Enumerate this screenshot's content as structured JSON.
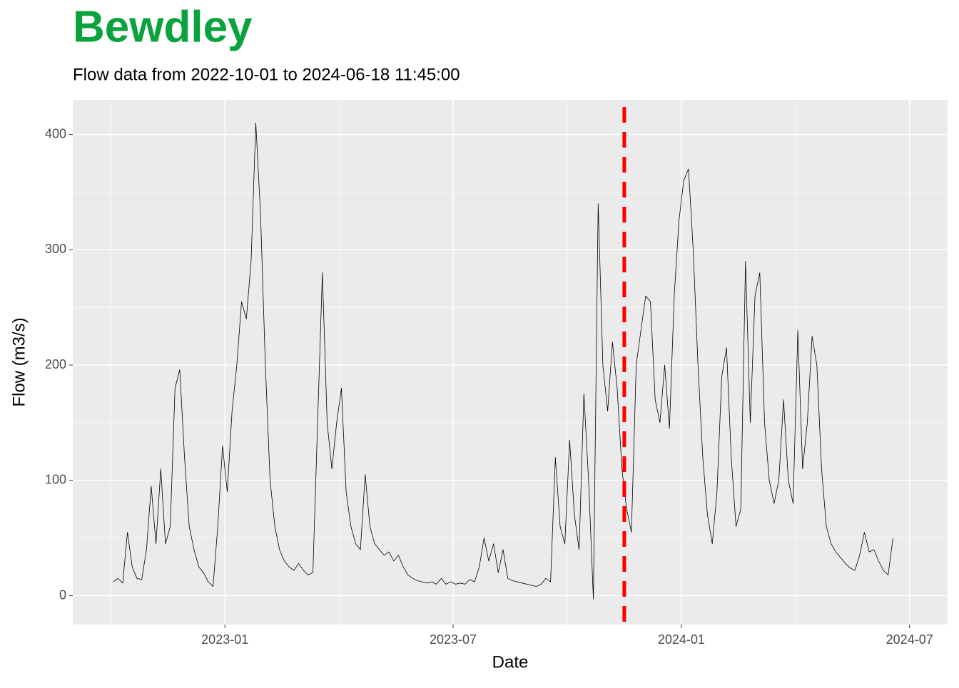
{
  "chart_data": {
    "type": "line",
    "title": "Bewdley",
    "subtitle": "Flow data from 2022-10-01 to 2024-06-18 11:45:00",
    "x_label": "Date",
    "y_label": "Flow (m3/s)",
    "title_color": "#0aa23d",
    "vline": {
      "x": "2023-11",
      "color": "#ff0000"
    },
    "xlim": [
      "2022-09",
      "2024-08"
    ],
    "xticks": [
      "2023-01",
      "2023-07",
      "2024-01",
      "2024-07"
    ],
    "ylim": [
      -25,
      430
    ],
    "yticks": [
      0,
      100,
      200,
      300,
      400
    ],
    "grid": true,
    "x": [
      "2022-10",
      "2022-10",
      "2022-10",
      "2022-10",
      "2022-10",
      "2022-10",
      "2022-10",
      "2022-10",
      "2022-11",
      "2022-11",
      "2022-11",
      "2022-11",
      "2022-11",
      "2022-11",
      "2022-11",
      "2022-11",
      "2022-12",
      "2022-12",
      "2022-12",
      "2022-12",
      "2022-12",
      "2022-12",
      "2022-12",
      "2022-12",
      "2023-01",
      "2023-01",
      "2023-01",
      "2023-01",
      "2023-01",
      "2023-01",
      "2023-01",
      "2023-01",
      "2023-02",
      "2023-02",
      "2023-02",
      "2023-02",
      "2023-02",
      "2023-02",
      "2023-02",
      "2023-02",
      "2023-03",
      "2023-03",
      "2023-03",
      "2023-03",
      "2023-03",
      "2023-03",
      "2023-03",
      "2023-03",
      "2023-04",
      "2023-04",
      "2023-04",
      "2023-04",
      "2023-04",
      "2023-04",
      "2023-04",
      "2023-04",
      "2023-05",
      "2023-05",
      "2023-05",
      "2023-05",
      "2023-05",
      "2023-05",
      "2023-05",
      "2023-05",
      "2023-06",
      "2023-06",
      "2023-06",
      "2023-06",
      "2023-06",
      "2023-06",
      "2023-06",
      "2023-06",
      "2023-07",
      "2023-07",
      "2023-07",
      "2023-07",
      "2023-07",
      "2023-07",
      "2023-07",
      "2023-07",
      "2023-08",
      "2023-08",
      "2023-08",
      "2023-08",
      "2023-08",
      "2023-08",
      "2023-08",
      "2023-08",
      "2023-09",
      "2023-09",
      "2023-09",
      "2023-09",
      "2023-09",
      "2023-09",
      "2023-09",
      "2023-09",
      "2023-10",
      "2023-10",
      "2023-10",
      "2023-10",
      "2023-10",
      "2023-10",
      "2023-10",
      "2023-10",
      "2023-11",
      "2023-11",
      "2023-11",
      "2023-11",
      "2023-11",
      "2023-11",
      "2023-11",
      "2023-11",
      "2023-12",
      "2023-12",
      "2023-12",
      "2023-12",
      "2023-12",
      "2023-12",
      "2023-12",
      "2023-12",
      "2024-01",
      "2024-01",
      "2024-01",
      "2024-01",
      "2024-01",
      "2024-01",
      "2024-01",
      "2024-01",
      "2024-02",
      "2024-02",
      "2024-02",
      "2024-02",
      "2024-02",
      "2024-02",
      "2024-02",
      "2024-02",
      "2024-03",
      "2024-03",
      "2024-03",
      "2024-03",
      "2024-03",
      "2024-03",
      "2024-03",
      "2024-03",
      "2024-04",
      "2024-04",
      "2024-04",
      "2024-04",
      "2024-04",
      "2024-04",
      "2024-04",
      "2024-04",
      "2024-05",
      "2024-05",
      "2024-05",
      "2024-05",
      "2024-05",
      "2024-05",
      "2024-05",
      "2024-05",
      "2024-06",
      "2024-06",
      "2024-06",
      "2024-06",
      "2024-06"
    ],
    "series": [
      {
        "name": "Flow",
        "color": "#000000",
        "values": [
          12,
          15,
          11,
          55,
          25,
          15,
          14,
          40,
          95,
          45,
          110,
          45,
          60,
          180,
          196,
          120,
          60,
          40,
          25,
          20,
          12,
          8,
          60,
          130,
          90,
          160,
          200,
          255,
          240,
          290,
          410,
          330,
          200,
          100,
          60,
          40,
          30,
          25,
          22,
          28,
          22,
          18,
          20,
          150,
          280,
          150,
          110,
          150,
          180,
          90,
          60,
          45,
          40,
          105,
          60,
          45,
          40,
          35,
          38,
          30,
          35,
          25,
          18,
          15,
          13,
          12,
          11,
          12,
          10,
          15,
          10,
          12,
          10,
          11,
          10,
          14,
          12,
          25,
          50,
          30,
          45,
          20,
          40,
          15,
          13,
          12,
          11,
          10,
          9,
          8,
          10,
          15,
          12,
          120,
          60,
          45,
          135,
          70,
          40,
          175,
          100,
          -3,
          340,
          200,
          160,
          220,
          180,
          110,
          75,
          55,
          200,
          230,
          260,
          255,
          170,
          150,
          200,
          145,
          260,
          325,
          360,
          370,
          300,
          200,
          120,
          70,
          45,
          90,
          190,
          215,
          120,
          60,
          75,
          290,
          150,
          260,
          280,
          150,
          100,
          80,
          100,
          170,
          100,
          80,
          230,
          110,
          150,
          225,
          200,
          110,
          60,
          45,
          38,
          33,
          28,
          24,
          22,
          35,
          55,
          38,
          40,
          30,
          22,
          18,
          50
        ]
      }
    ]
  }
}
